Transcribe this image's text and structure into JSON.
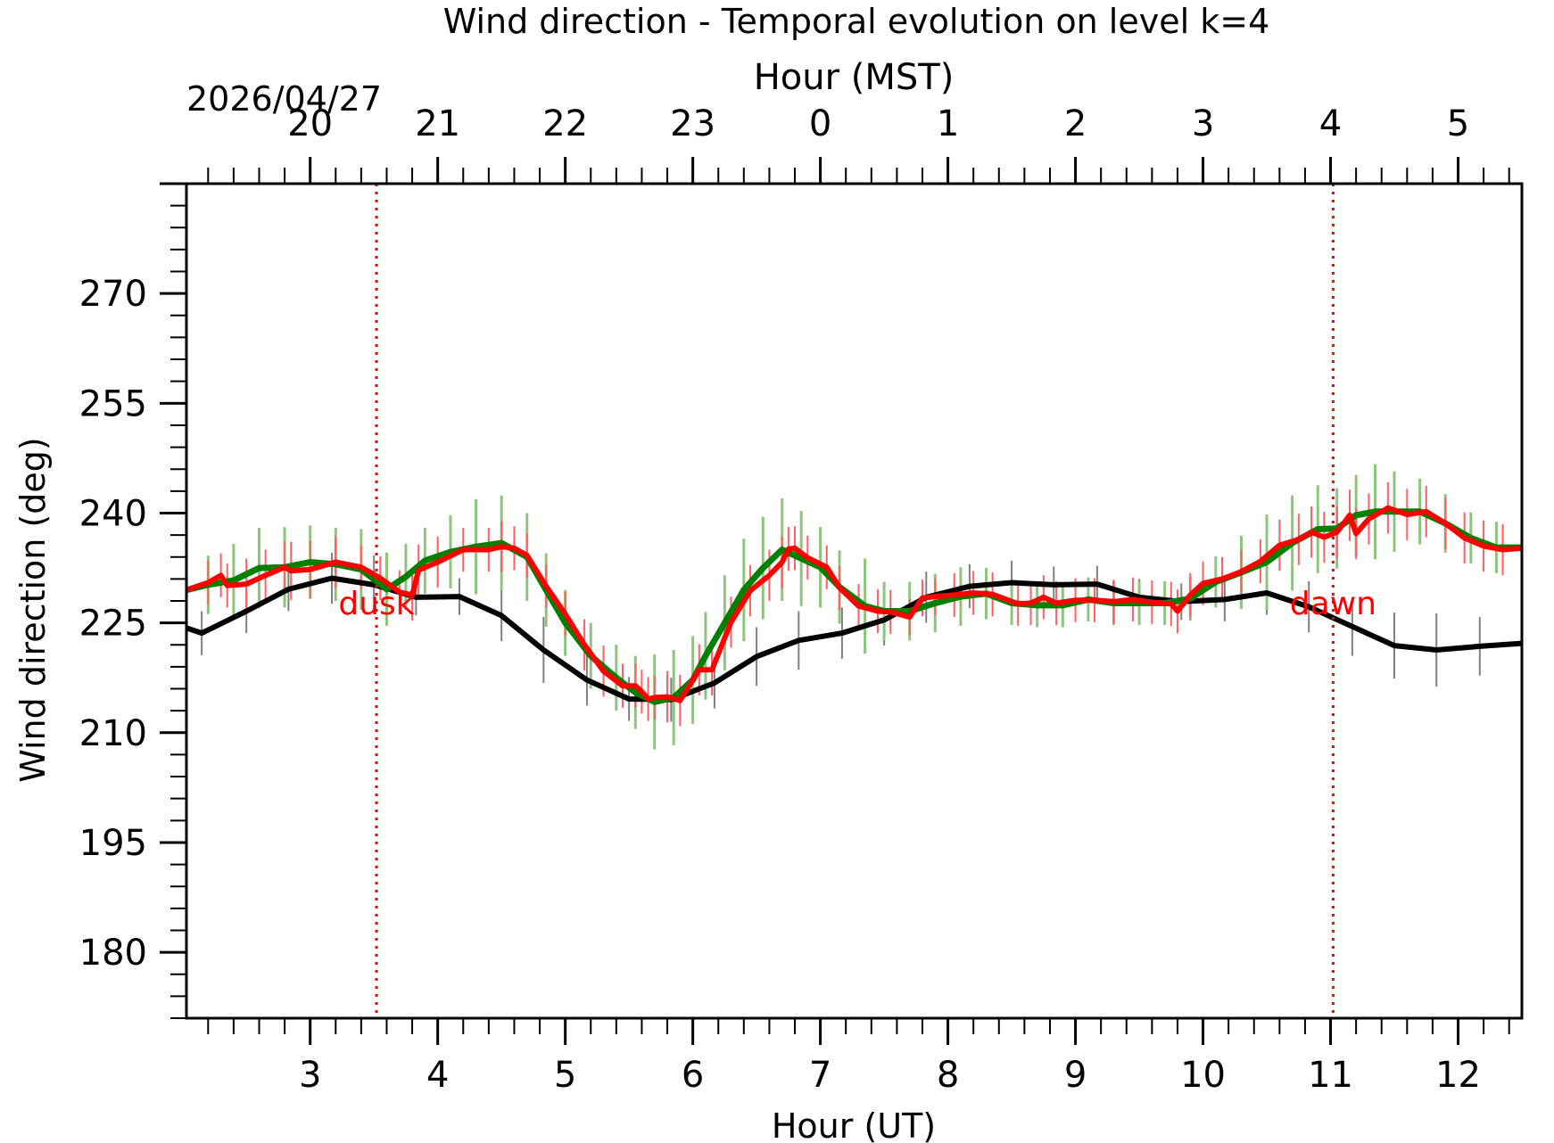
{
  "chart_data": {
    "type": "line",
    "title": "Wind direction - Temporal evolution on level k=4",
    "date_label": "2026/04/27",
    "xlabel": "Hour (UT)",
    "x2label": "Hour (MST)",
    "ylabel": "Wind direction (deg)",
    "xlim": [
      2.03,
      12.5
    ],
    "ylim": [
      171,
      285
    ],
    "x_ticks": [
      3,
      4,
      5,
      6,
      7,
      8,
      9,
      10,
      11,
      12
    ],
    "x_tick_labels": [
      "3",
      "4",
      "5",
      "6",
      "7",
      "8",
      "9",
      "10",
      "11",
      "12"
    ],
    "x2_ticks": [
      3,
      4,
      5,
      6,
      7,
      8,
      9,
      10,
      11,
      12
    ],
    "x2_tick_labels": [
      "20",
      "21",
      "22",
      "23",
      "0",
      "1",
      "2",
      "3",
      "4",
      "5"
    ],
    "y_ticks": [
      180,
      195,
      210,
      225,
      240,
      255,
      270
    ],
    "y_tick_labels": [
      "180",
      "195",
      "210",
      "225",
      "240",
      "255",
      "270"
    ],
    "grid": false,
    "colors": {
      "black_series": "#000000",
      "green_series": "#008000",
      "red_series": "#ff0000",
      "black_err": "#808080",
      "green_err": "#8fc47e",
      "red_err": "#ff6060",
      "event": "#ff0000"
    },
    "events": [
      {
        "label": "dusk",
        "x": 3.52
      },
      {
        "label": "dawn",
        "x": 11.02
      }
    ],
    "series": [
      {
        "x": [
          2.03,
          2.15,
          2.5,
          2.83,
          3.17,
          3.5,
          3.83,
          4.17,
          4.5,
          4.83,
          5.17,
          5.5,
          5.83,
          6.17,
          6.5,
          6.83,
          7.17,
          7.5,
          7.83,
          8.17,
          8.5,
          8.83,
          9.17,
          9.5,
          9.83,
          10.17,
          10.5,
          10.83,
          11.17,
          11.5,
          11.83,
          12.17,
          12.5
        ],
        "y": [
          224.3,
          223.6,
          226.6,
          229.6,
          231.1,
          230.2,
          228.5,
          228.6,
          226.0,
          221.3,
          217.2,
          214.6,
          214.5,
          216.8,
          220.4,
          222.6,
          223.6,
          225.4,
          228.5,
          230.0,
          230.5,
          230.2,
          230.3,
          228.5,
          227.9,
          228.2,
          229.1,
          227.2,
          224.5,
          221.9,
          221.3,
          221.8,
          222.2
        ],
        "err": [
          2.5,
          3,
          3,
          3,
          3.5,
          4,
          2.5,
          2.5,
          3.5,
          4.5,
          3.5,
          3,
          3,
          3.5,
          4,
          4,
          3.5,
          3.5,
          3.5,
          3,
          3,
          2.5,
          2.5,
          2.5,
          2.5,
          3,
          3,
          3.5,
          4,
          4.5,
          5,
          4,
          4
        ]
      },
      {
        "x": [
          2.03,
          2.2,
          2.4,
          2.6,
          2.8,
          3.0,
          3.2,
          3.4,
          3.6,
          3.75,
          3.9,
          4.1,
          4.3,
          4.5,
          4.7,
          4.85,
          5.0,
          5.2,
          5.4,
          5.55,
          5.7,
          5.85,
          6.0,
          6.1,
          6.25,
          6.4,
          6.55,
          6.7,
          6.85,
          7.0,
          7.15,
          7.35,
          7.5,
          7.7,
          7.9,
          8.1,
          8.3,
          8.5,
          8.7,
          8.9,
          9.1,
          9.3,
          9.5,
          9.7,
          9.9,
          10.1,
          10.3,
          10.5,
          10.7,
          10.9,
          11.05,
          11.2,
          11.35,
          11.5,
          11.7,
          11.9,
          12.1,
          12.3,
          12.5
        ],
        "y": [
          229.5,
          230.2,
          230.8,
          232.5,
          232.6,
          233.3,
          233.0,
          232.3,
          229.6,
          231.3,
          233.5,
          234.7,
          235.4,
          235.9,
          234.0,
          229.5,
          225.0,
          220.5,
          217.5,
          215.5,
          214.2,
          214.8,
          217.2,
          220.5,
          225.0,
          229.5,
          232.5,
          235.0,
          233.8,
          232.6,
          229.9,
          227.3,
          226.6,
          226.6,
          227.7,
          228.6,
          229.0,
          227.7,
          227.4,
          227.4,
          228.2,
          227.7,
          227.7,
          227.7,
          228.3,
          230.6,
          231.9,
          233.3,
          235.9,
          237.8,
          237.9,
          239.7,
          240.2,
          240.2,
          240.2,
          238.6,
          236.6,
          235.3,
          235.3
        ],
        "err": [
          3,
          4,
          5,
          5.5,
          5.5,
          5,
          5,
          5.5,
          5,
          4.5,
          4.5,
          5,
          6.5,
          6.5,
          6,
          5,
          4.5,
          4.5,
          4.5,
          5,
          6.5,
          6.5,
          6,
          6,
          6.5,
          7,
          7,
          7,
          6.5,
          5.5,
          5,
          6.5,
          4,
          4,
          4,
          4,
          3.5,
          3,
          3,
          3,
          3,
          3,
          3,
          3,
          3,
          3.5,
          5,
          6.5,
          6.5,
          6,
          5.5,
          5.5,
          6.5,
          5.5,
          4.5,
          4,
          3.5,
          3.5,
          3.5
        ]
      },
      {
        "x": [
          2.03,
          2.2,
          2.3,
          2.35,
          2.5,
          2.65,
          2.8,
          2.85,
          3.0,
          3.2,
          3.4,
          3.55,
          3.7,
          3.8,
          3.85,
          4.0,
          4.2,
          4.4,
          4.5,
          4.6,
          4.7,
          4.85,
          5.0,
          5.15,
          5.3,
          5.45,
          5.55,
          5.6,
          5.65,
          5.7,
          5.8,
          5.9,
          6.05,
          6.15,
          6.3,
          6.45,
          6.6,
          6.7,
          6.75,
          6.8,
          6.9,
          7.05,
          7.15,
          7.3,
          7.45,
          7.55,
          7.7,
          7.8,
          7.9,
          8.05,
          8.2,
          8.35,
          8.55,
          8.65,
          8.75,
          8.85,
          9.0,
          9.15,
          9.3,
          9.45,
          9.6,
          9.75,
          9.8,
          9.9,
          10.0,
          10.15,
          10.3,
          10.45,
          10.6,
          10.75,
          10.85,
          10.95,
          11.05,
          11.15,
          11.2,
          11.3,
          11.45,
          11.6,
          11.75,
          11.9,
          12.05,
          12.2,
          12.35,
          12.5
        ],
        "y": [
          229.5,
          230.5,
          231.5,
          230.1,
          230.3,
          231.5,
          232.6,
          232.1,
          232.3,
          233.3,
          232.6,
          231.1,
          229.2,
          228.8,
          232.2,
          233.3,
          235.0,
          235.0,
          235.4,
          235.2,
          234.2,
          230.0,
          226.2,
          222.0,
          218.4,
          216.4,
          216.4,
          215.6,
          214.6,
          214.8,
          214.9,
          214.4,
          218.6,
          218.6,
          225.1,
          229.4,
          231.5,
          233.3,
          235.1,
          235.2,
          233.9,
          232.6,
          229.8,
          227.3,
          226.6,
          226.5,
          225.8,
          228.4,
          228.6,
          228.8,
          229.1,
          228.9,
          227.6,
          227.7,
          228.5,
          227.7,
          228.1,
          228.1,
          227.9,
          228.2,
          227.8,
          227.6,
          226.6,
          228.8,
          230.4,
          231.0,
          232.0,
          233.4,
          235.6,
          236.4,
          237.4,
          236.7,
          237.4,
          239.7,
          237.2,
          239.2,
          240.7,
          239.8,
          240.2,
          238.6,
          236.6,
          235.5,
          235.0,
          235.2
        ],
        "err": [
          2.5,
          3,
          3,
          3,
          3.5,
          3.5,
          3.5,
          4,
          4,
          3.5,
          3,
          3,
          3,
          3.5,
          3.5,
          3.5,
          3,
          3,
          3.5,
          3,
          3,
          3,
          3,
          3.5,
          3.5,
          3,
          3,
          3,
          3,
          3,
          3.5,
          3.5,
          3.5,
          3.5,
          3.5,
          3.5,
          3.5,
          3.5,
          3,
          3,
          3,
          3,
          3,
          3,
          3,
          3,
          2.5,
          2.5,
          2.5,
          3,
          3,
          3,
          3,
          3,
          3,
          3,
          3,
          3,
          3,
          3,
          3,
          3,
          3,
          3,
          3,
          3,
          3,
          3,
          3.5,
          3.5,
          3.5,
          3.5,
          3.5,
          3.5,
          3.5,
          3.5,
          3.5,
          3.5,
          3.5,
          3.5,
          3.5,
          3.5,
          3.5,
          3.5
        ]
      }
    ]
  }
}
